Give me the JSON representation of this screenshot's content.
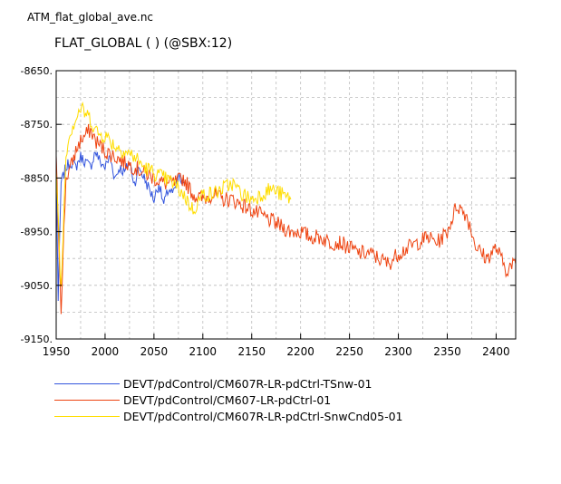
{
  "file_title": "ATM_flat_global_ave.nc",
  "chart_data": {
    "type": "line",
    "title": "FLAT_GLOBAL ( ) (@SBX:12)",
    "xlabel": "",
    "ylabel": "",
    "xlim": [
      1950,
      2420
    ],
    "ylim": [
      -9150,
      -8650
    ],
    "x_ticks": [
      1950,
      2000,
      2050,
      2100,
      2150,
      2200,
      2250,
      2300,
      2350,
      2400
    ],
    "y_ticks": [
      -8650,
      -8750,
      -8850,
      -8950,
      -9050,
      -9150
    ],
    "y_tick_labels": [
      "-8650.",
      "-8750.",
      "-8850.",
      "-8950.",
      "-9050.",
      "-9150."
    ],
    "grid": true,
    "legend_position": "bottom",
    "series": [
      {
        "name": "DEVT/pdControl/CM607R-LR-pdCtrl-TSnw-01",
        "color": "#3355dd",
        "x": [
          1950,
          1952,
          1955,
          1960,
          1965,
          1970,
          1975,
          1980,
          1985,
          1990,
          1995,
          2000,
          2005,
          2010,
          2015,
          2020,
          2025,
          2030,
          2035,
          2040,
          2045,
          2050,
          2055,
          2060,
          2065,
          2070,
          2075,
          2080
        ],
        "y": [
          -8810,
          -9080,
          -8860,
          -8830,
          -8820,
          -8830,
          -8810,
          -8820,
          -8830,
          -8800,
          -8820,
          -8830,
          -8810,
          -8850,
          -8830,
          -8840,
          -8820,
          -8860,
          -8830,
          -8850,
          -8870,
          -8890,
          -8860,
          -8900,
          -8870,
          -8880,
          -8850,
          -8860
        ]
      },
      {
        "name": "DEVT/pdControl/CM607-LR-pdCtrl-01",
        "color": "#ee4411",
        "x": [
          1950,
          1955,
          1960,
          1965,
          1970,
          1975,
          1980,
          1985,
          1990,
          1995,
          2000,
          2010,
          2020,
          2030,
          2040,
          2050,
          2060,
          2070,
          2080,
          2090,
          2100,
          2110,
          2120,
          2130,
          2140,
          2150,
          2160,
          2170,
          2180,
          2190,
          2200,
          2210,
          2220,
          2230,
          2240,
          2250,
          2260,
          2270,
          2280,
          2290,
          2300,
          2310,
          2320,
          2330,
          2340,
          2350,
          2360,
          2370,
          2380,
          2390,
          2400,
          2410,
          2420
        ],
        "y": [
          -8820,
          -9090,
          -8850,
          -8830,
          -8800,
          -8780,
          -8770,
          -8760,
          -8780,
          -8790,
          -8800,
          -8810,
          -8820,
          -8830,
          -8840,
          -8850,
          -8860,
          -8860,
          -8850,
          -8880,
          -8890,
          -8880,
          -8890,
          -8890,
          -8900,
          -8910,
          -8920,
          -8930,
          -8940,
          -8950,
          -8950,
          -8960,
          -8960,
          -8970,
          -8970,
          -8980,
          -8990,
          -8990,
          -9000,
          -9010,
          -8990,
          -8980,
          -8970,
          -8960,
          -8970,
          -8950,
          -8900,
          -8920,
          -8980,
          -9000,
          -8980,
          -9020,
          -9010
        ]
      },
      {
        "name": "DEVT/pdControl/CM607R-LR-pdCtrl-SnwCnd05-01",
        "color": "#ffdd00",
        "x": [
          1950,
          1955,
          1960,
          1965,
          1970,
          1975,
          1980,
          1985,
          1990,
          1995,
          2000,
          2010,
          2020,
          2030,
          2040,
          2050,
          2060,
          2070,
          2080,
          2090,
          2100,
          2110,
          2120,
          2130,
          2140,
          2150,
          2160,
          2170,
          2180,
          2190
        ],
        "y": [
          -8830,
          -9060,
          -8800,
          -8760,
          -8740,
          -8720,
          -8730,
          -8740,
          -8760,
          -8770,
          -8770,
          -8790,
          -8800,
          -8810,
          -8830,
          -8840,
          -8850,
          -8860,
          -8880,
          -8910,
          -8880,
          -8880,
          -8870,
          -8860,
          -8880,
          -8890,
          -8880,
          -8870,
          -8880,
          -8890
        ]
      }
    ]
  }
}
